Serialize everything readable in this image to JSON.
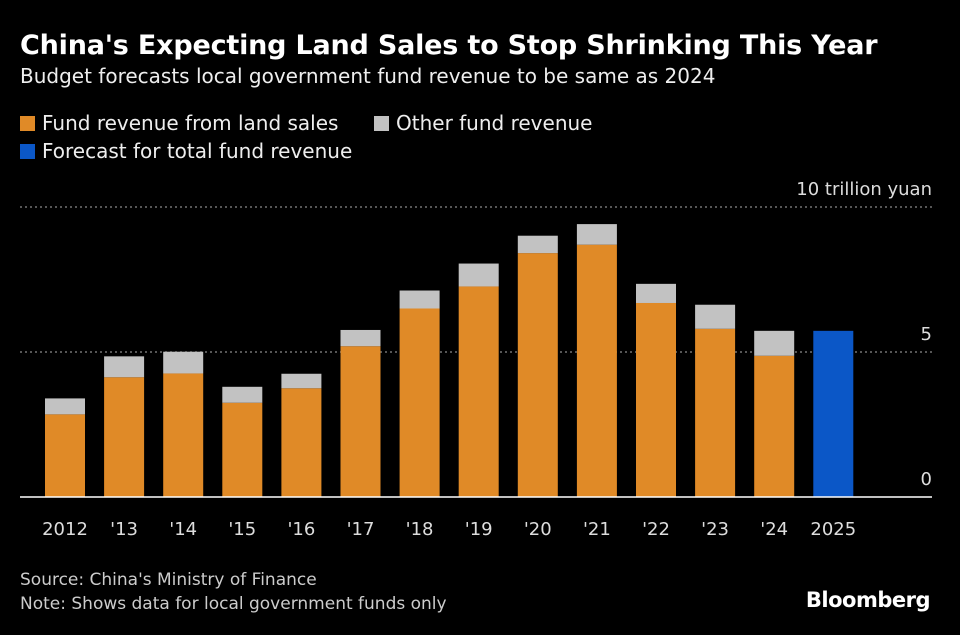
{
  "chart_data": {
    "type": "bar",
    "stacked": true,
    "title": "China's Expecting Land Sales to Stop Shrinking This Year",
    "subtitle": "Budget forecasts local government fund revenue to be same as 2024",
    "unit_label": "10 trillion yuan",
    "categories": [
      "2012",
      "'13",
      "'14",
      "'15",
      "'16",
      "'17",
      "'18",
      "'19",
      "'20",
      "'21",
      "'22",
      "'23",
      "'24",
      "2025"
    ],
    "series": [
      {
        "name": "Fund revenue from land sales",
        "color": "#e08a27",
        "values": [
          2.85,
          4.13,
          4.26,
          3.25,
          3.75,
          5.2,
          6.5,
          7.26,
          8.41,
          8.7,
          6.69,
          5.8,
          4.87,
          null
        ]
      },
      {
        "name": "Other fund revenue",
        "color": "#c2c2c2",
        "values": [
          0.55,
          0.72,
          0.75,
          0.55,
          0.5,
          0.56,
          0.62,
          0.79,
          0.6,
          0.71,
          0.66,
          0.83,
          0.86,
          null
        ]
      },
      {
        "name": "Forecast for total fund revenue",
        "color": "#0b57c7",
        "values": [
          null,
          null,
          null,
          null,
          null,
          null,
          null,
          null,
          null,
          null,
          null,
          null,
          null,
          5.73
        ]
      }
    ],
    "ylim": [
      0,
      10
    ],
    "yticks": [
      0,
      5,
      10
    ],
    "ytick_labels": [
      "0",
      "5",
      "10 trillion yuan"
    ],
    "grid": true,
    "legend_position": "top-left"
  },
  "footer": {
    "source": "Source: China's Ministry of Finance",
    "note": "Note: Shows data for local government funds only",
    "brand": "Bloomberg"
  }
}
